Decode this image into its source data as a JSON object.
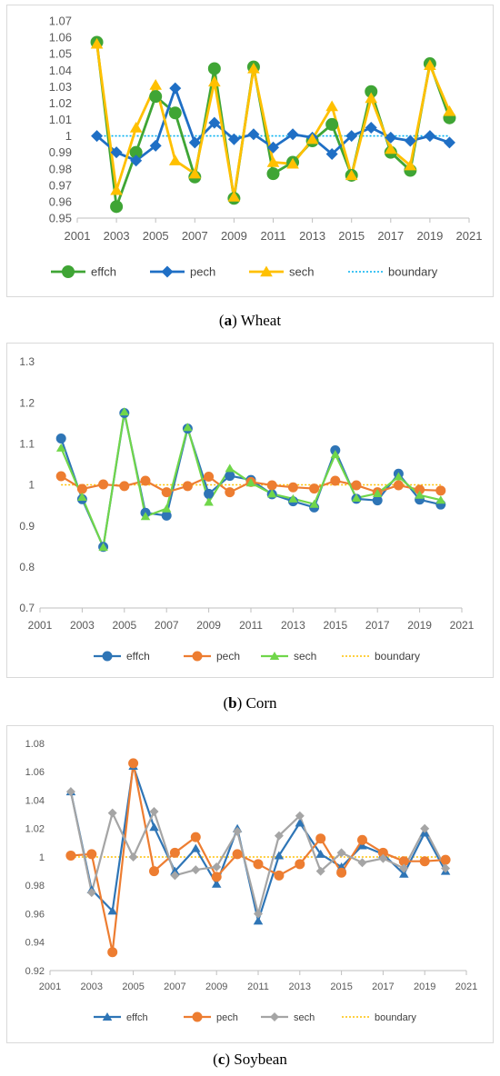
{
  "chart_data": [
    {
      "type": "line",
      "x": [
        2002,
        2003,
        2004,
        2005,
        2006,
        2007,
        2008,
        2009,
        2010,
        2011,
        2012,
        2013,
        2014,
        2015,
        2016,
        2017,
        2018,
        2019,
        2020
      ],
      "xlim": [
        2001,
        2021
      ],
      "ylim": [
        0.95,
        1.07
      ],
      "xticks": [
        "2001",
        "2003",
        "2005",
        "2007",
        "2009",
        "2011",
        "2013",
        "2015",
        "2017",
        "2019",
        "2021"
      ],
      "yticks": [
        "0.95",
        "0.96",
        "0.97",
        "0.98",
        "0.99",
        "1",
        "1.01",
        "1.02",
        "1.03",
        "1.04",
        "1.05",
        "1.06",
        "1.07"
      ],
      "legend_position": "bottom",
      "series": [
        {
          "name": "effch",
          "color": "#3fa535",
          "marker": "circle",
          "values": [
            1.057,
            0.957,
            0.99,
            1.024,
            1.014,
            0.975,
            1.041,
            0.962,
            1.042,
            0.977,
            0.984,
            0.997,
            1.007,
            0.976,
            1.027,
            0.99,
            0.979,
            1.044,
            1.011
          ]
        },
        {
          "name": "pech",
          "color": "#1f6fc5",
          "marker": "diamond",
          "values": [
            1.0,
            0.99,
            0.985,
            0.994,
            1.029,
            0.996,
            1.008,
            0.998,
            1.001,
            0.993,
            1.001,
            0.999,
            0.989,
            1.0,
            1.005,
            0.999,
            0.997,
            1.0,
            0.996
          ]
        },
        {
          "name": "sech",
          "color": "#ffc000",
          "marker": "triangle",
          "values": [
            1.056,
            0.967,
            1.005,
            1.031,
            0.985,
            0.977,
            1.033,
            0.963,
            1.041,
            0.984,
            0.983,
            0.998,
            1.018,
            0.976,
            1.023,
            0.992,
            0.982,
            1.043,
            1.015
          ]
        },
        {
          "name": "boundary",
          "color": "#00b0f0",
          "marker": "none",
          "dash": true,
          "values": [
            1,
            1,
            1,
            1,
            1,
            1,
            1,
            1,
            1,
            1,
            1,
            1,
            1,
            1,
            1,
            1,
            1,
            1,
            1
          ]
        }
      ]
    },
    {
      "type": "line",
      "x": [
        2002,
        2003,
        2004,
        2005,
        2006,
        2007,
        2008,
        2009,
        2010,
        2011,
        2012,
        2013,
        2014,
        2015,
        2016,
        2017,
        2018,
        2019,
        2020
      ],
      "xlim": [
        2001,
        2021
      ],
      "ylim": [
        0.7,
        1.3
      ],
      "xticks": [
        "2001",
        "2003",
        "2005",
        "2007",
        "2009",
        "2011",
        "2013",
        "2015",
        "2017",
        "2019",
        "2021"
      ],
      "yticks": [
        "0.7",
        "0.8",
        "0.9",
        "1",
        "1.1",
        "1.2",
        "1.3"
      ],
      "legend_position": "bottom",
      "series": [
        {
          "name": "effch",
          "color": "#2e75b6",
          "marker": "circle",
          "values": [
            1.113,
            0.965,
            0.849,
            1.175,
            0.932,
            0.925,
            1.137,
            0.978,
            1.022,
            1.012,
            0.977,
            0.96,
            0.945,
            1.084,
            0.966,
            0.962,
            1.027,
            0.964,
            0.952
          ]
        },
        {
          "name": "pech",
          "color": "#ed7d31",
          "marker": "circle",
          "values": [
            1.021,
            0.99,
            1.001,
            0.997,
            1.01,
            0.982,
            0.997,
            1.02,
            0.982,
            1.007,
            0.999,
            0.994,
            0.991,
            1.01,
            0.999,
            0.982,
            0.999,
            0.988,
            0.986
          ]
        },
        {
          "name": "sech",
          "color": "#70d64a",
          "marker": "triangle",
          "values": [
            1.09,
            0.97,
            0.848,
            1.178,
            0.923,
            0.942,
            1.14,
            0.958,
            1.04,
            1.005,
            0.978,
            0.966,
            0.953,
            1.074,
            0.968,
            0.979,
            1.02,
            0.975,
            0.963
          ]
        },
        {
          "name": "boundary",
          "color": "#ffc000",
          "marker": "none",
          "dash": true,
          "values": [
            1,
            1,
            1,
            1,
            1,
            1,
            1,
            1,
            1,
            1,
            1,
            1,
            1,
            1,
            1,
            1,
            1,
            1,
            1
          ]
        }
      ]
    },
    {
      "type": "line",
      "x": [
        2002,
        2003,
        2004,
        2005,
        2006,
        2007,
        2008,
        2009,
        2010,
        2011,
        2012,
        2013,
        2014,
        2015,
        2016,
        2017,
        2018,
        2019,
        2020
      ],
      "xlim": [
        2001,
        2021
      ],
      "ylim": [
        0.92,
        1.08
      ],
      "xticks": [
        "2001",
        "2003",
        "2005",
        "2007",
        "2009",
        "2011",
        "2013",
        "2015",
        "2017",
        "2019",
        "2021"
      ],
      "yticks": [
        "0.92",
        "0.94",
        "0.96",
        "0.98",
        "1",
        "1.02",
        "1.04",
        "1.06",
        "1.08"
      ],
      "legend_position": "bottom",
      "series": [
        {
          "name": "effch",
          "color": "#2e75b6",
          "marker": "triangle",
          "values": [
            1.046,
            0.977,
            0.962,
            1.064,
            1.021,
            0.99,
            1.006,
            0.981,
            1.02,
            0.955,
            1.001,
            1.024,
            1.002,
            0.993,
            1.008,
            1.002,
            0.988,
            1.017,
            0.99
          ]
        },
        {
          "name": "pech",
          "color": "#ed7d31",
          "marker": "circle",
          "values": [
            1.001,
            1.002,
            0.933,
            1.066,
            0.99,
            1.003,
            1.014,
            0.986,
            1.002,
            0.995,
            0.987,
            0.995,
            1.013,
            0.989,
            1.012,
            1.003,
            0.997,
            0.997,
            0.998
          ]
        },
        {
          "name": "sech",
          "color": "#a5a5a5",
          "marker": "diamond",
          "values": [
            1.046,
            0.975,
            1.031,
            1.0,
            1.032,
            0.987,
            0.991,
            0.993,
            1.018,
            0.96,
            1.015,
            1.029,
            0.99,
            1.003,
            0.996,
            0.999,
            0.992,
            1.02,
            0.992
          ]
        },
        {
          "name": "boundary",
          "color": "#ffc000",
          "marker": "none",
          "dash": true,
          "values": [
            1,
            1,
            1,
            1,
            1,
            1,
            1,
            1,
            1,
            1,
            1,
            1,
            1,
            1,
            1,
            1,
            1,
            1,
            1
          ]
        }
      ]
    }
  ],
  "captions": [
    {
      "letter": "a",
      "text": " Wheat"
    },
    {
      "letter": "b",
      "text": " Corn"
    },
    {
      "letter": "c",
      "text": " Soybean"
    }
  ]
}
